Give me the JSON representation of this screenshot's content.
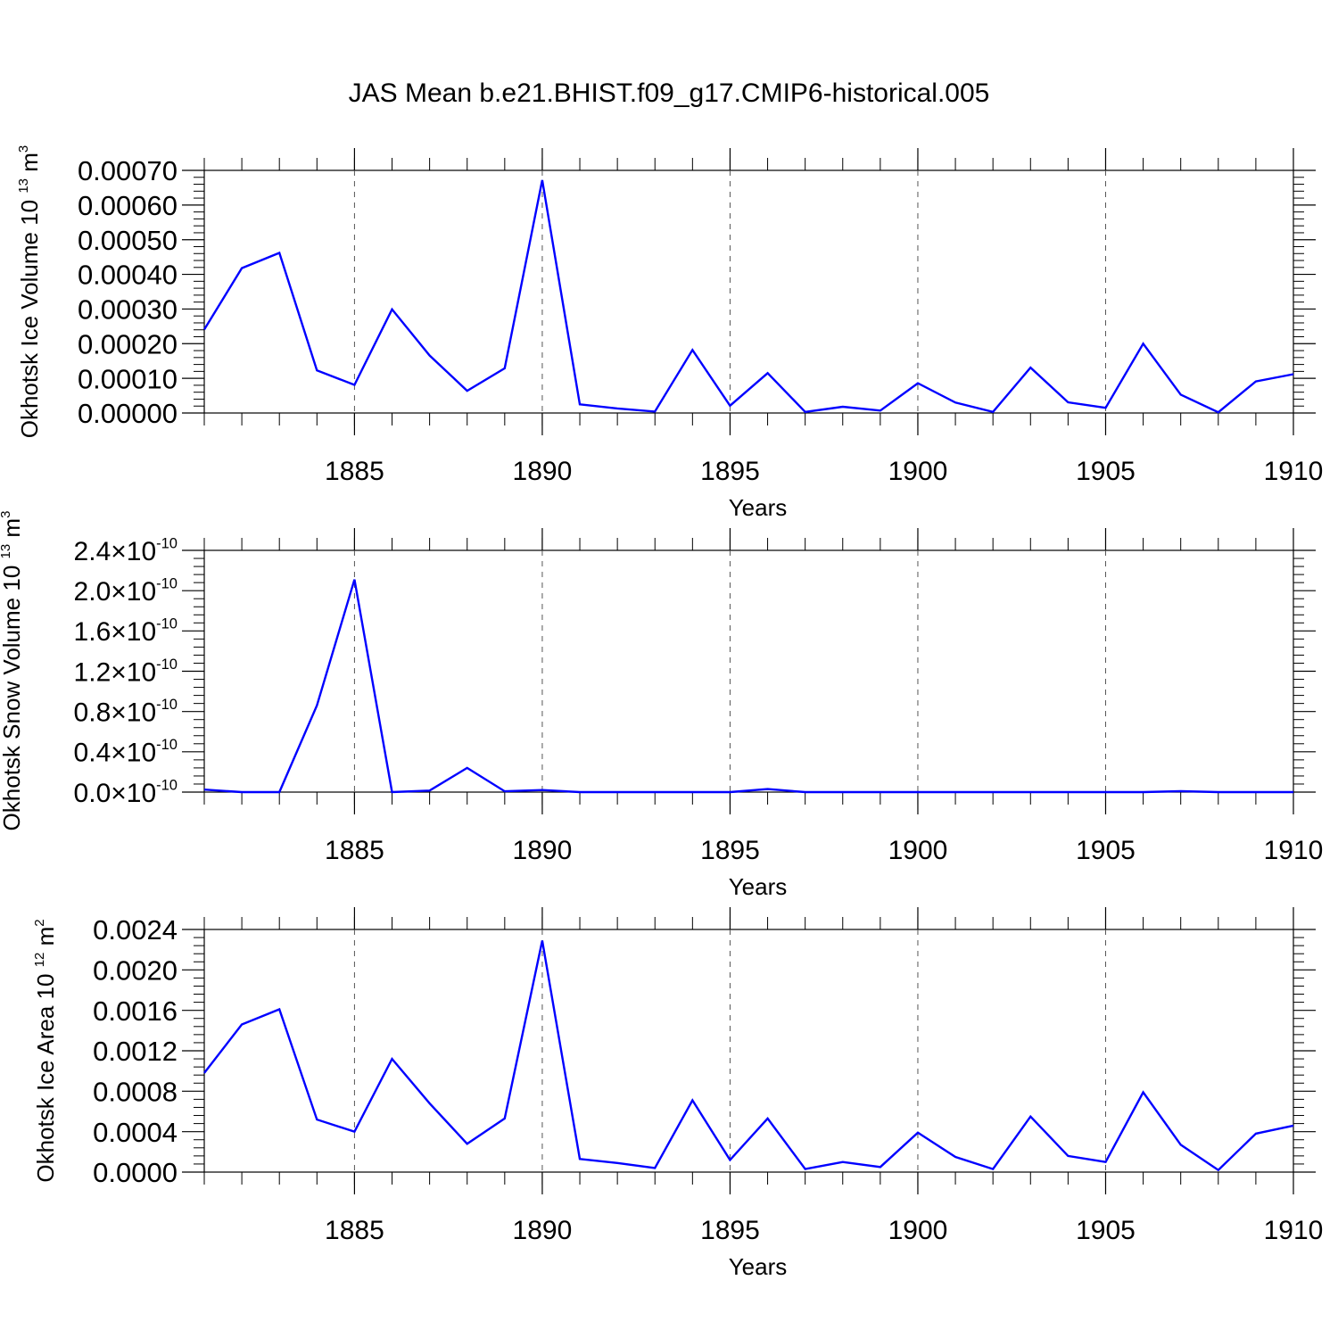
{
  "figure": {
    "title": "JAS Mean b.e21.BHIST.f09_g17.CMIP6-historical.005",
    "line_color": "#0000ff"
  },
  "chart_data": [
    {
      "type": "line",
      "title": "",
      "xlabel": "Years",
      "ylabel": "Okhotsk Ice Volume 10",
      "ylabel_exponent": "13",
      "ylabel_unit": "m",
      "ylabel_unit_exponent": "3",
      "xlim": [
        1881,
        1910
      ],
      "ylim": [
        0,
        0.0007
      ],
      "xticks": [
        1885,
        1890,
        1895,
        1900,
        1905,
        1910
      ],
      "xtick_labels": [
        "1885",
        "1890",
        "1895",
        "1900",
        "1905",
        "1910"
      ],
      "yticks": [
        0.0,
        0.0001,
        0.0002,
        0.0003,
        0.0004,
        0.0005,
        0.0006,
        0.0007
      ],
      "ytick_labels": [
        "0.00000",
        "0.00010",
        "0.00020",
        "0.00030",
        "0.00040",
        "0.00050",
        "0.00060",
        "0.00070"
      ],
      "ytick_exponent": "",
      "grid": "vertical dashed at major x ticks",
      "series": [
        {
          "name": "Okhotsk Ice Volume",
          "x": [
            1881,
            1882,
            1883,
            1884,
            1885,
            1886,
            1887,
            1888,
            1889,
            1890,
            1891,
            1892,
            1893,
            1894,
            1895,
            1896,
            1897,
            1898,
            1899,
            1900,
            1901,
            1902,
            1903,
            1904,
            1905,
            1906,
            1907,
            1908,
            1909,
            1910
          ],
          "values": [
            0.000241,
            0.000418,
            0.000462,
            0.000123,
            8.1e-05,
            0.000299,
            0.000166,
            6.4e-05,
            0.000129,
            0.000672,
            2.5e-05,
            1.3e-05,
            4e-06,
            0.000182,
            2.1e-05,
            0.000115,
            3e-06,
            1.8e-05,
            7e-06,
            8.6e-05,
            3e-05,
            3e-06,
            0.000131,
            3.1e-05,
            1.5e-05,
            0.0002,
            5.3e-05,
            2e-06,
            9.1e-05,
            0.000112
          ]
        }
      ]
    },
    {
      "type": "line",
      "title": "",
      "xlabel": "Years",
      "ylabel": "Okhotsk Snow Volume 10",
      "ylabel_exponent": "13",
      "ylabel_unit": "m",
      "ylabel_unit_exponent": "3",
      "xlim": [
        1881,
        1910
      ],
      "ylim": [
        0,
        2.4e-10
      ],
      "xticks": [
        1885,
        1890,
        1895,
        1900,
        1905,
        1910
      ],
      "xtick_labels": [
        "1885",
        "1890",
        "1895",
        "1900",
        "1905",
        "1910"
      ],
      "yticks": [
        0,
        4e-11,
        8e-11,
        1.2e-10,
        1.6e-10,
        2e-10,
        2.4e-10
      ],
      "ytick_labels": [
        "0.0×10",
        "0.4×10",
        "0.8×10",
        "1.2×10",
        "1.6×10",
        "2.0×10",
        "2.4×10"
      ],
      "ytick_exponent": "-10",
      "grid": "vertical dashed at major x ticks",
      "series": [
        {
          "name": "Okhotsk Snow Volume",
          "x": [
            1881,
            1882,
            1883,
            1884,
            1885,
            1886,
            1887,
            1888,
            1889,
            1890,
            1891,
            1892,
            1893,
            1894,
            1895,
            1896,
            1897,
            1898,
            1899,
            1900,
            1901,
            1902,
            1903,
            1904,
            1905,
            1906,
            1907,
            1908,
            1909,
            1910
          ],
          "values": [
            2.5e-12,
            0.0,
            0.0,
            8.6e-11,
            2.11e-10,
            0.0,
            1.5e-12,
            2.4e-11,
            8e-13,
            2e-12,
            0.0,
            0.0,
            0.0,
            0.0,
            0.0,
            3e-12,
            0.0,
            0.0,
            0.0,
            0.0,
            0.0,
            0.0,
            0.0,
            0.0,
            0.0,
            0.0,
            1e-12,
            0.0,
            0.0,
            0.0
          ]
        }
      ]
    },
    {
      "type": "line",
      "title": "",
      "xlabel": "Years",
      "ylabel": "Okhotsk Ice Area 10",
      "ylabel_exponent": "12",
      "ylabel_unit": "m",
      "ylabel_unit_exponent": "2",
      "xlim": [
        1881,
        1910
      ],
      "ylim": [
        0,
        0.0024
      ],
      "xticks": [
        1885,
        1890,
        1895,
        1900,
        1905,
        1910
      ],
      "xtick_labels": [
        "1885",
        "1890",
        "1895",
        "1900",
        "1905",
        "1910"
      ],
      "yticks": [
        0.0,
        0.0004,
        0.0008,
        0.0012,
        0.0016,
        0.002,
        0.0024
      ],
      "ytick_labels": [
        "0.0000",
        "0.0004",
        "0.0008",
        "0.0012",
        "0.0016",
        "0.0020",
        "0.0024"
      ],
      "ytick_exponent": "",
      "grid": "vertical dashed at major x ticks",
      "series": [
        {
          "name": "Okhotsk Ice Area",
          "x": [
            1881,
            1882,
            1883,
            1884,
            1885,
            1886,
            1887,
            1888,
            1889,
            1890,
            1891,
            1892,
            1893,
            1894,
            1895,
            1896,
            1897,
            1898,
            1899,
            1900,
            1901,
            1902,
            1903,
            1904,
            1905,
            1906,
            1907,
            1908,
            1909,
            1910
          ],
          "values": [
            0.00098,
            0.00146,
            0.00161,
            0.00052,
            0.0004,
            0.00112,
            0.00068,
            0.00028,
            0.00053,
            0.00229,
            0.00013,
            9e-05,
            4e-05,
            0.00071,
            0.00012,
            0.00053,
            3e-05,
            0.0001,
            5e-05,
            0.00039,
            0.00015,
            3e-05,
            0.00055,
            0.00016,
            0.0001,
            0.00079,
            0.00027,
            2e-05,
            0.00038,
            0.00046
          ]
        }
      ]
    }
  ]
}
